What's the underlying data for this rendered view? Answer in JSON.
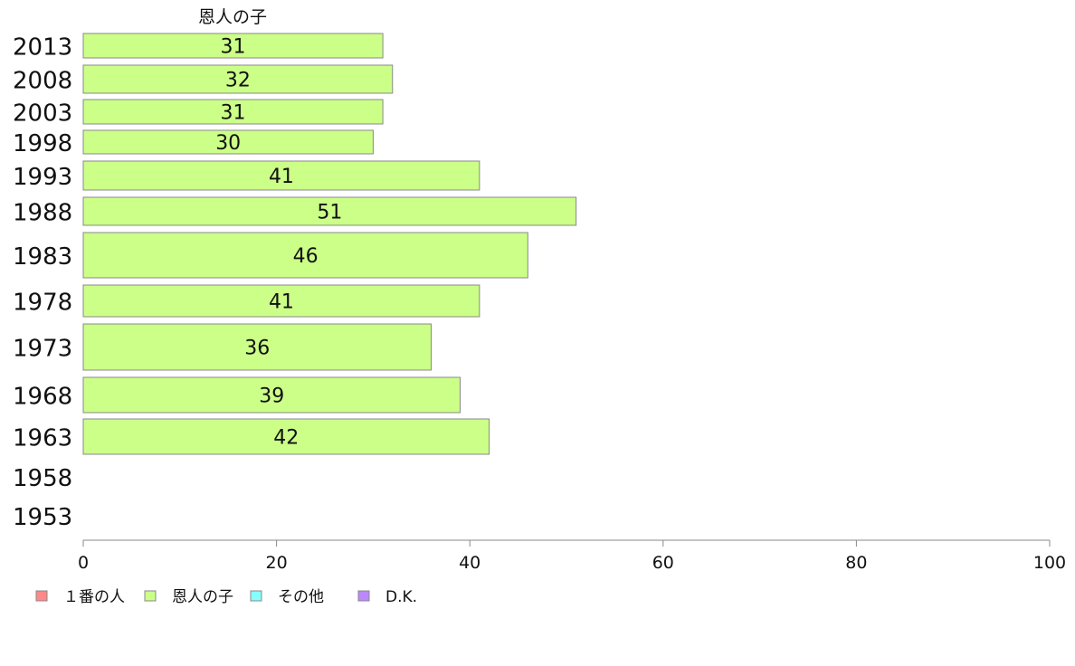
{
  "chart_data": {
    "type": "bar",
    "orientation": "horizontal",
    "column_title": "恩人の子",
    "categories": [
      "2013",
      "2008",
      "2003",
      "1998",
      "1993",
      "1988",
      "1983",
      "1978",
      "1973",
      "1968",
      "1963",
      "1958",
      "1953"
    ],
    "series": [
      {
        "name": "恩人の子",
        "values": [
          31,
          32,
          31,
          30,
          41,
          51,
          46,
          41,
          36,
          39,
          42,
          null,
          null
        ],
        "color": "#ccff88"
      }
    ],
    "xlim": [
      0,
      100
    ],
    "xticks": [
      0,
      20,
      40,
      60,
      80,
      100
    ],
    "grid": false,
    "legend": {
      "position": "bottom-left",
      "items": [
        {
          "label": "１番の人",
          "color": "#ff8888"
        },
        {
          "label": "恩人の子",
          "color": "#ccff88"
        },
        {
          "label": "その他",
          "color": "#88ffff"
        },
        {
          "label": "D.K.",
          "color": "#bb88ff"
        }
      ]
    }
  }
}
